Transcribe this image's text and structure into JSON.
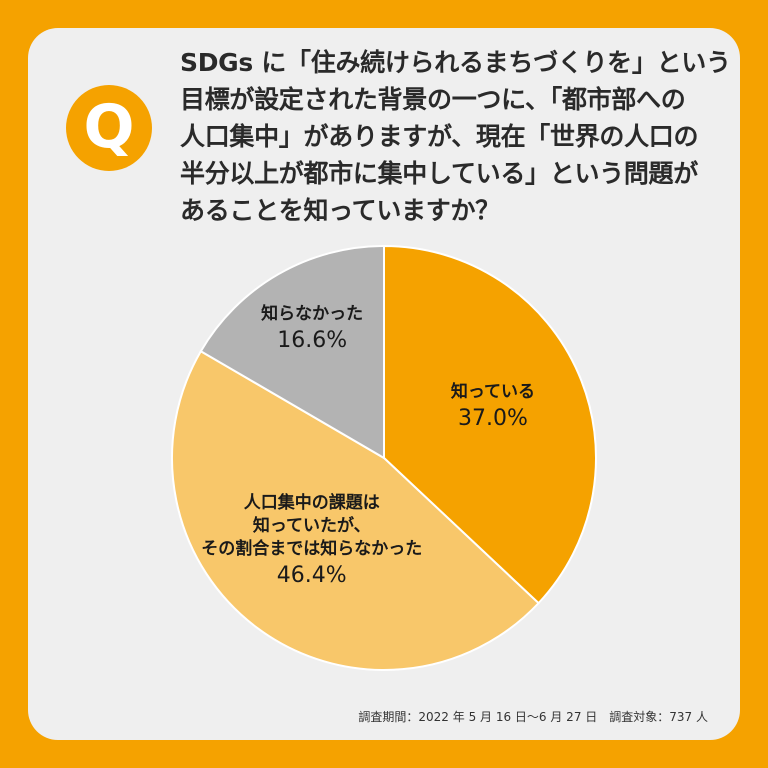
{
  "question": {
    "badge": "Q",
    "lines": [
      "SDGs に「住み続けられるまちづくりを」という",
      "目標が設定された背景の一つに、「都市部への",
      "人口集中」がありますが、現在「世界の人口の",
      "半分以上が都市に集中している」という問題が",
      "あることを知っていますか？"
    ]
  },
  "chart_data": {
    "type": "pie",
    "title": "",
    "slices": [
      {
        "label": [
          "知っている"
        ],
        "value": 37.0,
        "display": "37.0%",
        "color": "#F5A200"
      },
      {
        "label": [
          "人口集中の課題は",
          "知っていたが、",
          "その割合までは知らなかった"
        ],
        "value": 46.4,
        "display": "46.4%",
        "color": "#F8C76A"
      },
      {
        "label": [
          "知らなかった"
        ],
        "value": 16.6,
        "display": "16.6%",
        "color": "#B3B3B3"
      }
    ],
    "start": "12 o'clock",
    "direction": "clockwise"
  },
  "footer": "調査期間：2022 年 5 月 16 日〜6 月 27 日　調査対象：737 人",
  "colors": {
    "background": "#F5A200",
    "card": "#EFEFEF",
    "slice_border": "#FFFFFF"
  }
}
